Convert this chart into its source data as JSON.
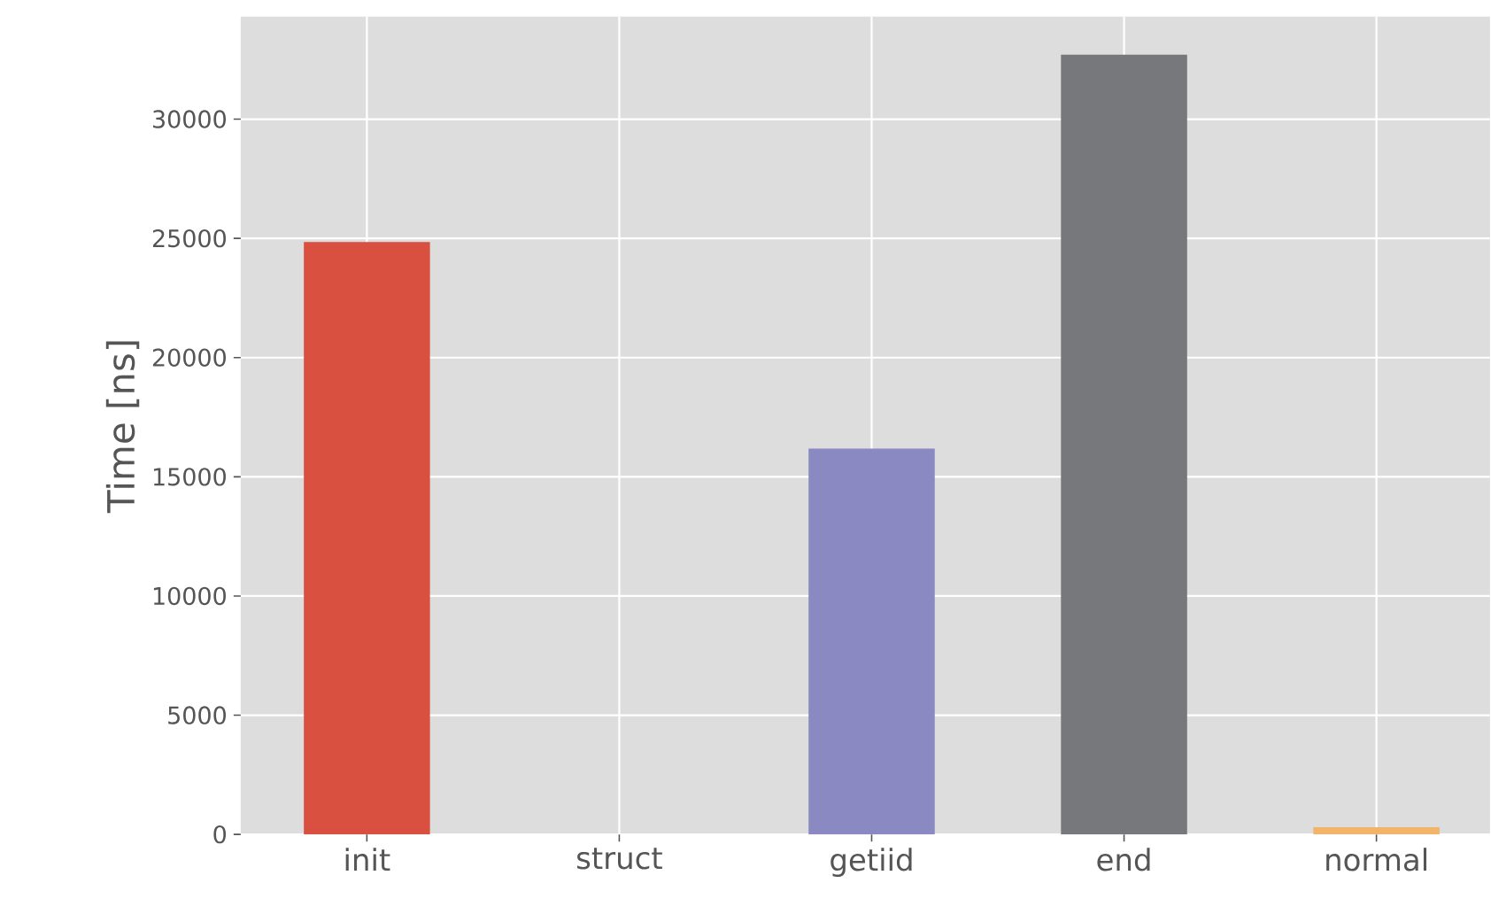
{
  "chart_data": {
    "type": "bar",
    "ylabel": "Time [ns]",
    "categories": [
      "init",
      "struct",
      "getiid",
      "end",
      "normal"
    ],
    "values": [
      24850,
      0,
      16180,
      32700,
      300
    ],
    "colors": [
      "#d95040",
      "#348abd",
      "#8a89c1",
      "#77787b",
      "#f2b469"
    ],
    "ylim": [
      0,
      34300
    ],
    "yticks": [
      0,
      5000,
      10000,
      15000,
      20000,
      25000,
      30000
    ],
    "grid": true
  }
}
